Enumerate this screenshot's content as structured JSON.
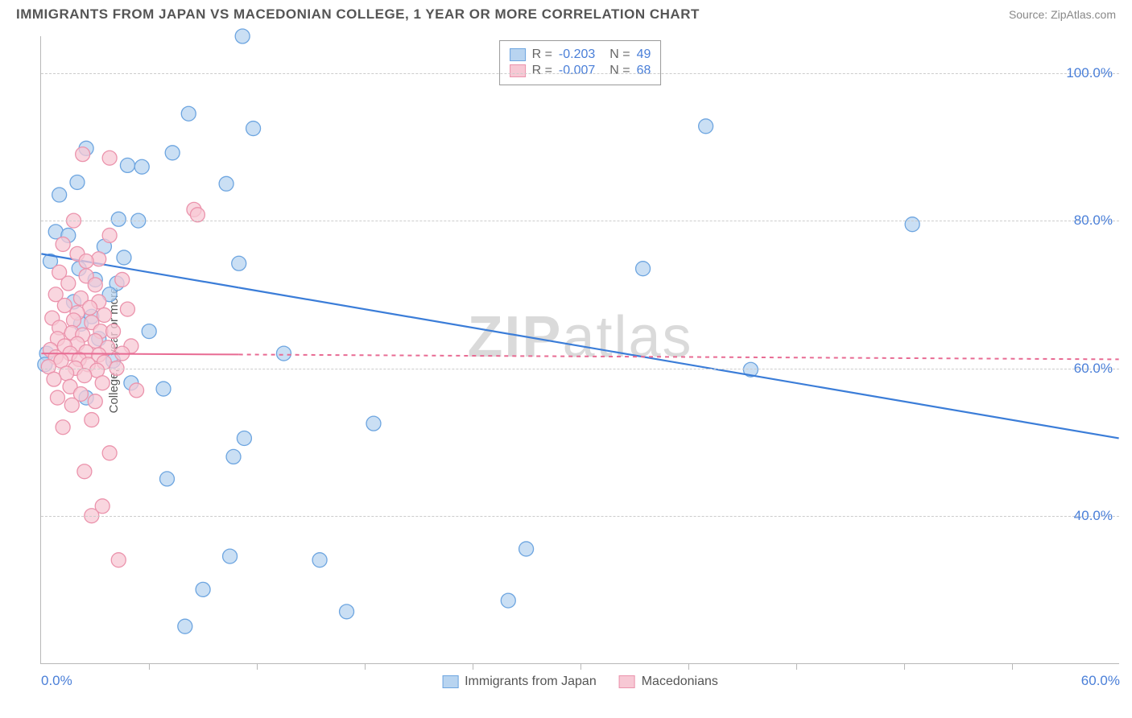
{
  "title": "IMMIGRANTS FROM JAPAN VS MACEDONIAN COLLEGE, 1 YEAR OR MORE CORRELATION CHART",
  "source": "Source: ZipAtlas.com",
  "watermark_bold": "ZIP",
  "watermark_rest": "atlas",
  "chart": {
    "type": "scatter",
    "y_label": "College, 1 year or more",
    "x_range": [
      0,
      60
    ],
    "y_range": [
      20,
      105
    ],
    "x_ticks": [
      0,
      60
    ],
    "x_tick_labels": [
      "0.0%",
      "60.0%"
    ],
    "x_minor_ticks": [
      6,
      12,
      18,
      24,
      30,
      36,
      42,
      48,
      54
    ],
    "y_gridlines": [
      40,
      60,
      80,
      100
    ],
    "y_tick_labels": [
      "40.0%",
      "60.0%",
      "80.0%",
      "100.0%"
    ],
    "grid_color": "#cccccc",
    "axis_color": "#b8b8b8",
    "background_color": "#ffffff",
    "series": [
      {
        "name": "Immigrants from Japan",
        "color_fill": "#b8d4f0",
        "color_stroke": "#6da5e0",
        "marker_radius": 9,
        "marker_opacity": 0.75,
        "R": "-0.203",
        "N": "49",
        "trend": {
          "x1": 0,
          "y1": 75.5,
          "x2": 60,
          "y2": 50.5,
          "stroke": "#3b7dd8",
          "width": 2.2,
          "solid_until_x": 11,
          "dash": "none_then_solid"
        },
        "points": [
          {
            "x": 11.2,
            "y": 105
          },
          {
            "x": 8.2,
            "y": 94.5
          },
          {
            "x": 11.8,
            "y": 92.5
          },
          {
            "x": 2.5,
            "y": 89.8
          },
          {
            "x": 7.3,
            "y": 89.2
          },
          {
            "x": 4.8,
            "y": 87.5
          },
          {
            "x": 5.6,
            "y": 87.3
          },
          {
            "x": 2.0,
            "y": 85.2
          },
          {
            "x": 10.3,
            "y": 85
          },
          {
            "x": 1.0,
            "y": 83.5
          },
          {
            "x": 4.3,
            "y": 80.2
          },
          {
            "x": 5.4,
            "y": 80
          },
          {
            "x": 0.8,
            "y": 78.5
          },
          {
            "x": 1.5,
            "y": 78
          },
          {
            "x": 3.5,
            "y": 76.5
          },
          {
            "x": 4.6,
            "y": 75
          },
          {
            "x": 0.5,
            "y": 74.5
          },
          {
            "x": 11.0,
            "y": 74.2
          },
          {
            "x": 2.1,
            "y": 73.5
          },
          {
            "x": 3.0,
            "y": 72
          },
          {
            "x": 4.2,
            "y": 71.5
          },
          {
            "x": 3.8,
            "y": 70
          },
          {
            "x": 2.8,
            "y": 67
          },
          {
            "x": 3.2,
            "y": 64
          },
          {
            "x": 0.3,
            "y": 62
          },
          {
            "x": 0.2,
            "y": 60.5
          },
          {
            "x": 5.0,
            "y": 58
          },
          {
            "x": 6.8,
            "y": 57.2
          },
          {
            "x": 2.5,
            "y": 56
          },
          {
            "x": 11.3,
            "y": 50.5
          },
          {
            "x": 18.5,
            "y": 52.5
          },
          {
            "x": 10.7,
            "y": 48
          },
          {
            "x": 7.0,
            "y": 45
          },
          {
            "x": 10.5,
            "y": 34.5
          },
          {
            "x": 15.5,
            "y": 34
          },
          {
            "x": 9.0,
            "y": 30
          },
          {
            "x": 17.0,
            "y": 27
          },
          {
            "x": 8.0,
            "y": 25
          },
          {
            "x": 37.0,
            "y": 92.8
          },
          {
            "x": 33.5,
            "y": 73.5
          },
          {
            "x": 39.5,
            "y": 59.8
          },
          {
            "x": 48.5,
            "y": 79.5
          },
          {
            "x": 27.0,
            "y": 35.5
          },
          {
            "x": 26.0,
            "y": 28.5
          },
          {
            "x": 13.5,
            "y": 62
          },
          {
            "x": 6.0,
            "y": 65
          },
          {
            "x": 1.8,
            "y": 69
          },
          {
            "x": 2.2,
            "y": 66
          },
          {
            "x": 4.0,
            "y": 61
          }
        ]
      },
      {
        "name": "Macedonians",
        "color_fill": "#f7c8d4",
        "color_stroke": "#eb93ac",
        "marker_radius": 9,
        "marker_opacity": 0.75,
        "R": "-0.007",
        "N": "68",
        "trend": {
          "x1": 0,
          "y1": 62,
          "x2": 60,
          "y2": 61.2,
          "stroke": "#e86b93",
          "width": 2.0,
          "solid_until_x": 11,
          "dash": "4,4"
        },
        "points": [
          {
            "x": 2.3,
            "y": 89
          },
          {
            "x": 3.8,
            "y": 88.5
          },
          {
            "x": 1.8,
            "y": 80
          },
          {
            "x": 3.8,
            "y": 78
          },
          {
            "x": 1.2,
            "y": 76.8
          },
          {
            "x": 2.0,
            "y": 75.5
          },
          {
            "x": 3.2,
            "y": 74.8
          },
          {
            "x": 2.5,
            "y": 74.5
          },
          {
            "x": 1.0,
            "y": 73
          },
          {
            "x": 2.5,
            "y": 72.5
          },
          {
            "x": 1.5,
            "y": 71.5
          },
          {
            "x": 3.0,
            "y": 71.3
          },
          {
            "x": 0.8,
            "y": 70
          },
          {
            "x": 2.2,
            "y": 69.5
          },
          {
            "x": 3.2,
            "y": 69
          },
          {
            "x": 1.3,
            "y": 68.5
          },
          {
            "x": 2.7,
            "y": 68.2
          },
          {
            "x": 2.0,
            "y": 67.5
          },
          {
            "x": 3.5,
            "y": 67.2
          },
          {
            "x": 0.6,
            "y": 66.8
          },
          {
            "x": 1.8,
            "y": 66.5
          },
          {
            "x": 2.8,
            "y": 66.2
          },
          {
            "x": 1.0,
            "y": 65.5
          },
          {
            "x": 3.3,
            "y": 65
          },
          {
            "x": 1.7,
            "y": 64.8
          },
          {
            "x": 2.3,
            "y": 64.5
          },
          {
            "x": 0.9,
            "y": 64
          },
          {
            "x": 3.0,
            "y": 63.7
          },
          {
            "x": 2.0,
            "y": 63.3
          },
          {
            "x": 1.3,
            "y": 63
          },
          {
            "x": 3.7,
            "y": 62.8
          },
          {
            "x": 0.5,
            "y": 62.5
          },
          {
            "x": 2.5,
            "y": 62.2
          },
          {
            "x": 1.6,
            "y": 62
          },
          {
            "x": 3.2,
            "y": 61.8
          },
          {
            "x": 0.8,
            "y": 61.5
          },
          {
            "x": 2.1,
            "y": 61.2
          },
          {
            "x": 1.1,
            "y": 61
          },
          {
            "x": 3.5,
            "y": 60.8
          },
          {
            "x": 2.6,
            "y": 60.5
          },
          {
            "x": 0.4,
            "y": 60.2
          },
          {
            "x": 1.9,
            "y": 60
          },
          {
            "x": 3.1,
            "y": 59.7
          },
          {
            "x": 1.4,
            "y": 59.3
          },
          {
            "x": 2.4,
            "y": 59
          },
          {
            "x": 0.7,
            "y": 58.5
          },
          {
            "x": 3.4,
            "y": 58
          },
          {
            "x": 1.6,
            "y": 57.5
          },
          {
            "x": 2.2,
            "y": 56.5
          },
          {
            "x": 0.9,
            "y": 56
          },
          {
            "x": 3.0,
            "y": 55.5
          },
          {
            "x": 1.7,
            "y": 55
          },
          {
            "x": 2.8,
            "y": 53
          },
          {
            "x": 1.2,
            "y": 52
          },
          {
            "x": 3.8,
            "y": 48.5
          },
          {
            "x": 2.4,
            "y": 46
          },
          {
            "x": 3.4,
            "y": 41.3
          },
          {
            "x": 2.8,
            "y": 40
          },
          {
            "x": 4.3,
            "y": 34
          },
          {
            "x": 8.5,
            "y": 81.5
          },
          {
            "x": 8.7,
            "y": 80.8
          },
          {
            "x": 4.5,
            "y": 72
          },
          {
            "x": 4.8,
            "y": 68
          },
          {
            "x": 5.0,
            "y": 63
          },
          {
            "x": 4.2,
            "y": 60
          },
          {
            "x": 5.3,
            "y": 57
          },
          {
            "x": 4.5,
            "y": 62
          },
          {
            "x": 4.0,
            "y": 65
          }
        ]
      }
    ]
  },
  "legend_stats": {
    "r_label": "R",
    "n_label": "N",
    "eq": "="
  },
  "bottom_legend": {
    "series1": "Immigrants from Japan",
    "series2": "Macedonians"
  }
}
